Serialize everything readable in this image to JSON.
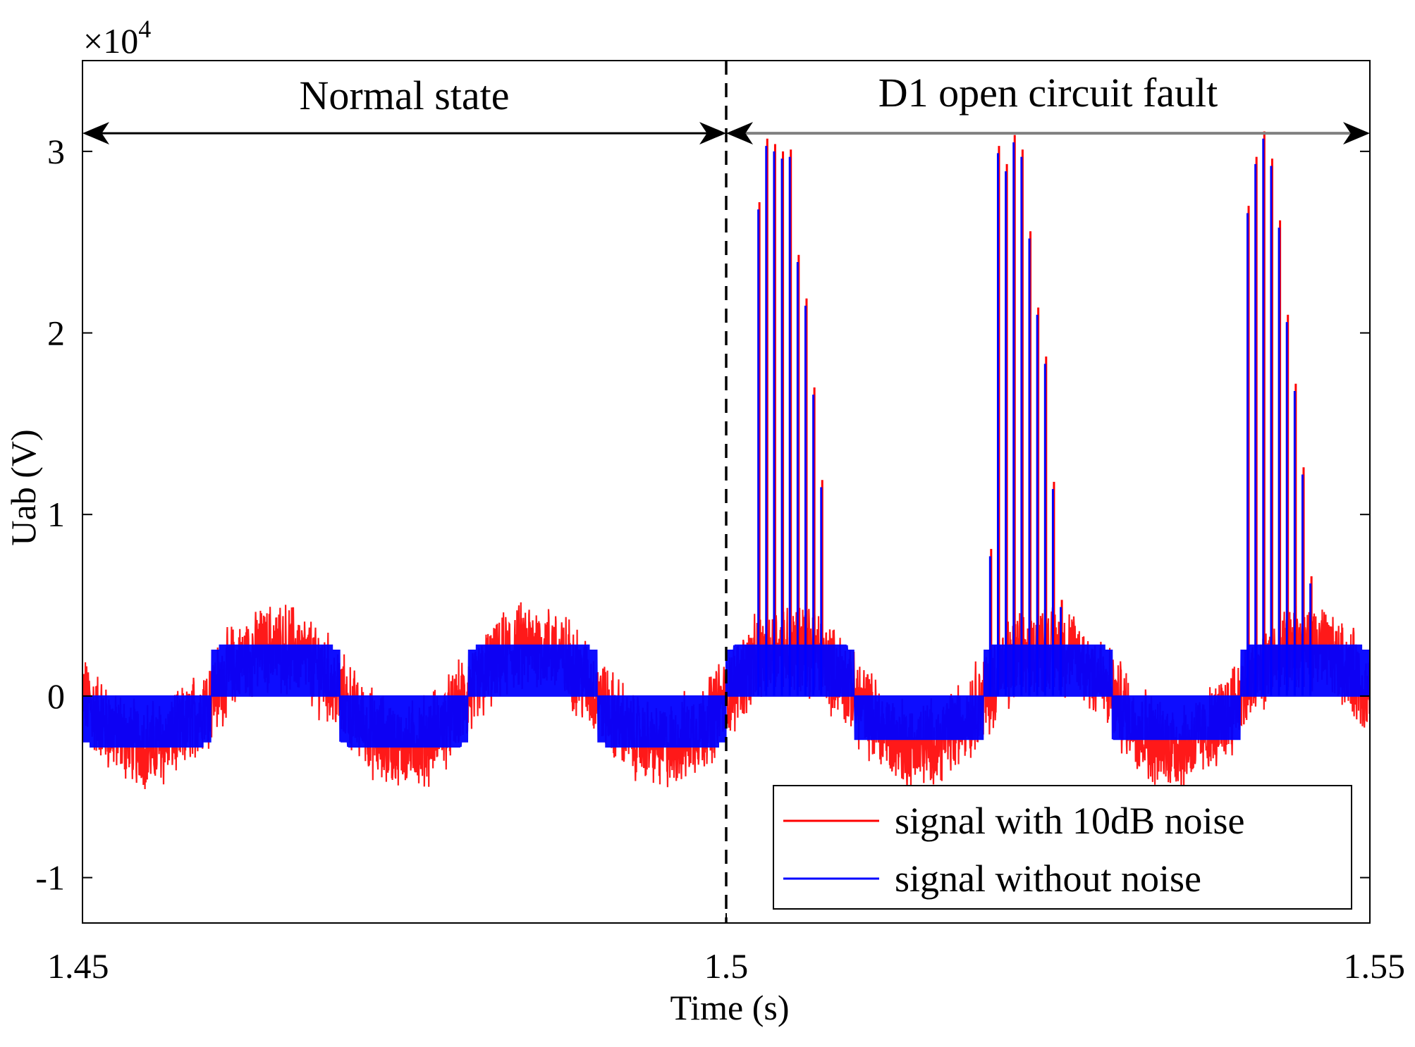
{
  "chart_data": {
    "type": "line",
    "title": "",
    "xlabel": "Time (s)",
    "ylabel": "Uab (V)",
    "xlim": [
      1.45,
      1.55
    ],
    "ylim": [
      -12500,
      35000
    ],
    "y_multiplier": {
      "base": "×10",
      "exponent": "4"
    },
    "x_ticks": [
      {
        "value": 1.45,
        "label": "1.45"
      },
      {
        "value": 1.5,
        "label": "1.5"
      },
      {
        "value": 1.55,
        "label": "1.55"
      }
    ],
    "y_ticks": [
      {
        "value": -10000,
        "label": "-1"
      },
      {
        "value": 0,
        "label": "0"
      },
      {
        "value": 10000,
        "label": "1"
      },
      {
        "value": 20000,
        "label": "2"
      },
      {
        "value": 30000,
        "label": "3"
      }
    ],
    "fault_time": 1.5,
    "normal_region": {
      "label": "Normal state",
      "from": 1.45,
      "to": 1.5,
      "y": 31000
    },
    "fault_region": {
      "label": "D1 open circuit fault",
      "from": 1.5,
      "to": 1.55,
      "y": 31000
    },
    "series": [
      {
        "name": "signal with 10dB noise",
        "color": "#ff0000",
        "description_values": {
          "normal_level_amplitude": 2800,
          "noise_amplitude": 2000
        }
      },
      {
        "name": "signal without noise",
        "color": "#0000ff",
        "description_values": {
          "normal_level_amplitude": 2800,
          "fault_spike_groups": [
            {
              "start": 1.5025,
              "peaks": [
                26800,
                30300,
                30000,
                29600,
                29700,
                23900,
                21500,
                16600,
                11500
              ]
            },
            {
              "start": 1.5205,
              "peaks": [
                7700,
                29900,
                28900,
                30500,
                29700,
                25200,
                21000,
                18300,
                11400,
                4900
              ]
            },
            {
              "start": 1.5405,
              "peaks": [
                26600,
                29300,
                30700,
                29200,
                25800,
                20600,
                16800,
                12200,
                6200
              ]
            }
          ]
        }
      }
    ],
    "legend": {
      "position": "bottom-right",
      "entries": [
        {
          "label": "signal with 10dB noise",
          "color": "#ff0000"
        },
        {
          "label": "signal without noise",
          "color": "#0000ff"
        }
      ]
    }
  }
}
